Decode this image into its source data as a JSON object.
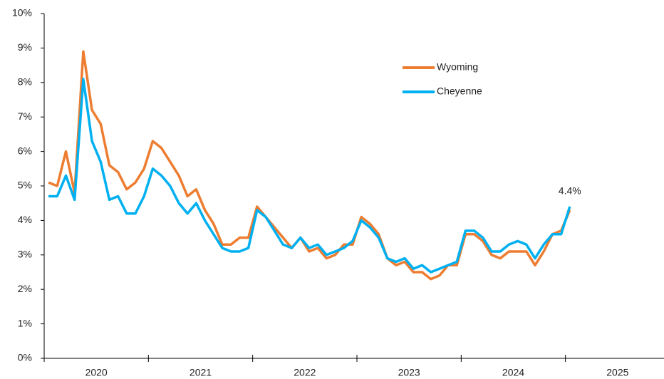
{
  "chart_data": {
    "type": "line",
    "x": [
      "2020-01",
      "2020-02",
      "2020-03",
      "2020-04",
      "2020-05",
      "2020-06",
      "2020-07",
      "2020-08",
      "2020-09",
      "2020-10",
      "2020-11",
      "2020-12",
      "2021-01",
      "2021-02",
      "2021-03",
      "2021-04",
      "2021-05",
      "2021-06",
      "2021-07",
      "2021-08",
      "2021-09",
      "2021-10",
      "2021-11",
      "2021-12",
      "2022-01",
      "2022-02",
      "2022-03",
      "2022-04",
      "2022-05",
      "2022-06",
      "2022-07",
      "2022-08",
      "2022-09",
      "2022-10",
      "2022-11",
      "2022-12",
      "2023-01",
      "2023-02",
      "2023-03",
      "2023-04",
      "2023-05",
      "2023-06",
      "2023-07",
      "2023-08",
      "2023-09",
      "2023-10",
      "2023-11",
      "2023-12",
      "2024-01",
      "2024-02",
      "2024-03",
      "2024-04",
      "2024-05",
      "2024-06",
      "2024-07",
      "2024-08",
      "2024-09",
      "2024-10",
      "2024-11",
      "2024-12",
      "2025-01"
    ],
    "series": [
      {
        "name": "Wyoming",
        "color": "#ED7D31",
        "values": [
          5.1,
          5.0,
          6.0,
          4.8,
          8.9,
          7.2,
          6.8,
          5.6,
          5.4,
          4.9,
          5.1,
          5.5,
          6.3,
          6.1,
          5.7,
          5.3,
          4.7,
          4.9,
          4.3,
          3.9,
          3.3,
          3.3,
          3.5,
          3.5,
          4.4,
          4.1,
          3.8,
          3.5,
          3.2,
          3.5,
          3.1,
          3.2,
          2.9,
          3.0,
          3.3,
          3.3,
          4.1,
          3.9,
          3.6,
          2.9,
          2.7,
          2.8,
          2.5,
          2.5,
          2.3,
          2.4,
          2.7,
          2.7,
          3.6,
          3.6,
          3.4,
          3.0,
          2.9,
          3.1,
          3.1,
          3.1,
          2.7,
          3.1,
          3.6,
          3.7,
          4.3
        ]
      },
      {
        "name": "Cheyenne",
        "color": "#00B0F0",
        "values": [
          4.7,
          4.7,
          5.3,
          4.6,
          8.1,
          6.3,
          5.7,
          4.6,
          4.7,
          4.2,
          4.2,
          4.7,
          5.5,
          5.3,
          5.0,
          4.5,
          4.2,
          4.5,
          4.0,
          3.6,
          3.2,
          3.1,
          3.1,
          3.2,
          4.3,
          4.1,
          3.7,
          3.3,
          3.2,
          3.5,
          3.2,
          3.3,
          3.0,
          3.1,
          3.2,
          3.4,
          4.0,
          3.8,
          3.5,
          2.9,
          2.8,
          2.9,
          2.6,
          2.7,
          2.5,
          2.6,
          2.7,
          2.8,
          3.7,
          3.7,
          3.5,
          3.1,
          3.1,
          3.3,
          3.4,
          3.3,
          2.9,
          3.3,
          3.6,
          3.6,
          4.4
        ],
        "value_labels": [
          null,
          null,
          null,
          null,
          null,
          null,
          null,
          null,
          null,
          null,
          null,
          null,
          null,
          null,
          null,
          null,
          null,
          null,
          null,
          null,
          null,
          null,
          null,
          null,
          null,
          null,
          null,
          null,
          null,
          null,
          null,
          null,
          null,
          null,
          null,
          null,
          null,
          null,
          null,
          null,
          null,
          null,
          null,
          null,
          null,
          null,
          null,
          null,
          null,
          null,
          null,
          null,
          null,
          null,
          null,
          null,
          null,
          null,
          null,
          null,
          "4.4%"
        ]
      }
    ],
    "xtick_labels": [
      "2020",
      "2021",
      "2022",
      "2023",
      "2024",
      "2025"
    ],
    "ylim": [
      0,
      10
    ],
    "yticks": [
      {
        "value": 0,
        "label": "0%"
      },
      {
        "value": 1,
        "label": "1%"
      },
      {
        "value": 2,
        "label": "2%"
      },
      {
        "value": 3,
        "label": "3%"
      },
      {
        "value": 4,
        "label": "4%"
      },
      {
        "value": 5,
        "label": "5%"
      },
      {
        "value": 6,
        "label": "6%"
      },
      {
        "value": 7,
        "label": "7%"
      },
      {
        "value": 8,
        "label": "8%"
      },
      {
        "value": 9,
        "label": "9%"
      },
      {
        "value": 10,
        "label": "10%"
      }
    ],
    "grid": false,
    "legend": "upper center"
  }
}
